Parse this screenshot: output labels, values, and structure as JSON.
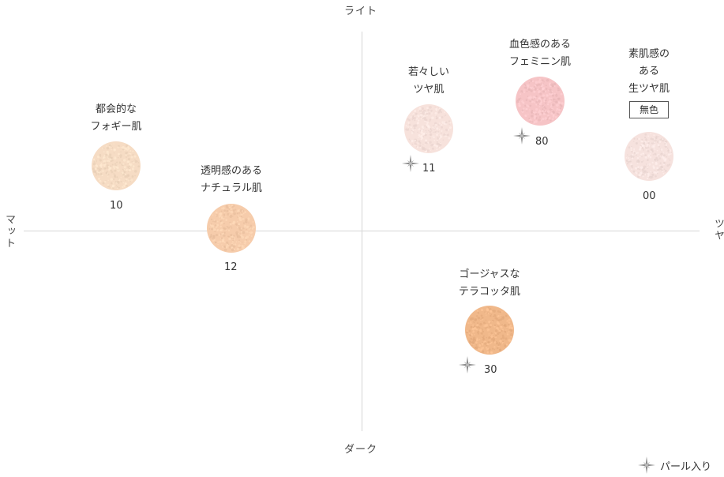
{
  "axes": {
    "top": "ライト",
    "bottom": "ダーク",
    "left": "マット",
    "right": "ツヤ"
  },
  "items": [
    {
      "code": "10",
      "label": "都会的な\nフォギー肌",
      "color": "#f6dcc4",
      "pearl": false
    },
    {
      "code": "12",
      "label": "透明感のある\nナチュラル肌",
      "color": "#f6ccab",
      "pearl": false
    },
    {
      "code": "11",
      "label": "若々しい\nツヤ肌",
      "color": "#f7e2dc",
      "pearl": true
    },
    {
      "code": "80",
      "label": "血色感のある\nフェミニン肌",
      "color": "#f6c4c6",
      "pearl": true
    },
    {
      "code": "00",
      "label": "素肌感の\nある\n生ツヤ肌",
      "badge": "無色",
      "color": "#f6e2de",
      "pearl": false
    },
    {
      "code": "30",
      "label": "ゴージャスな\nテラコッタ肌",
      "color": "#f0b88a",
      "pearl": true
    }
  ],
  "legend": {
    "pearl_label": "パール入り",
    "icon": "sparkle-icon",
    "icon_color": "#8a8a8a"
  }
}
